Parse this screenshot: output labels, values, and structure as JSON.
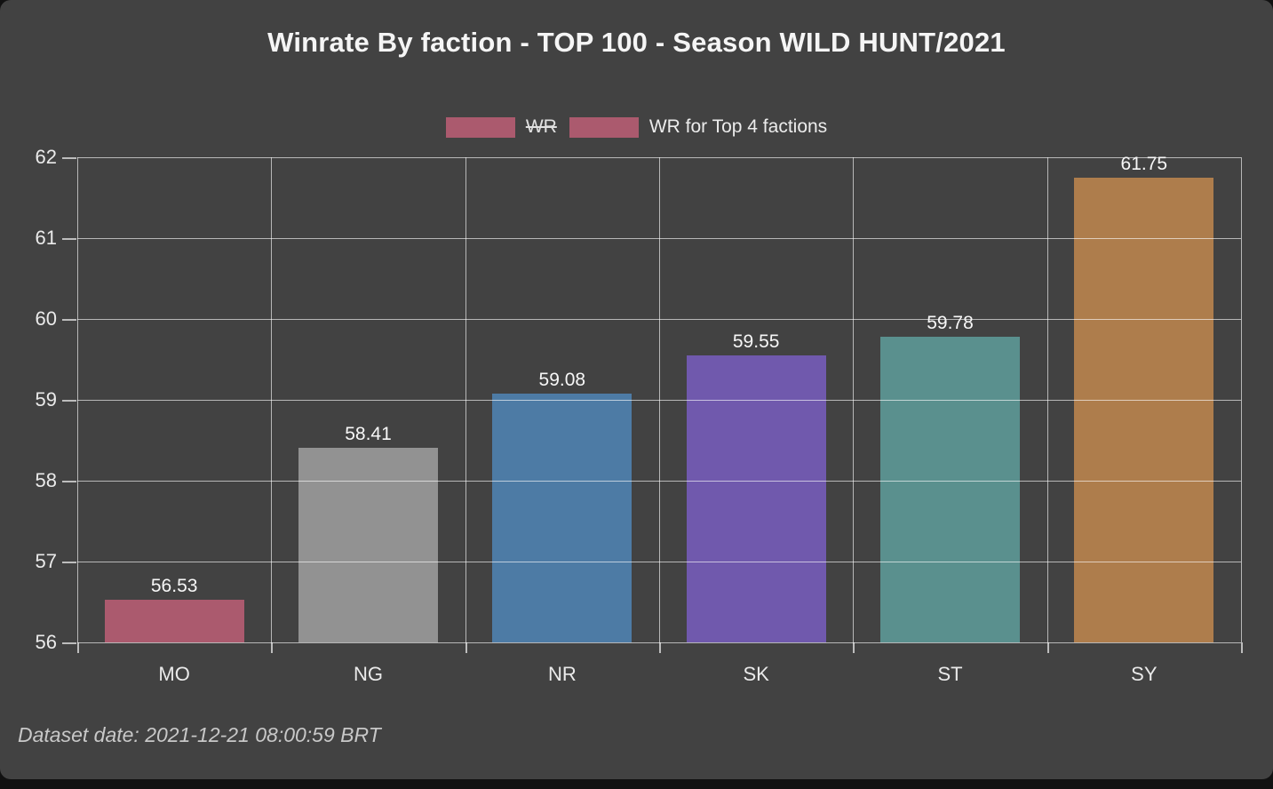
{
  "window": {
    "page_background": "#111111",
    "card_background": "#424242"
  },
  "chart_data": {
    "type": "bar",
    "title": "Winrate By faction - TOP 100 - Season WILD HUNT/2021",
    "categories": [
      "MO",
      "NG",
      "NR",
      "SK",
      "ST",
      "SY"
    ],
    "values": [
      56.53,
      58.41,
      59.08,
      59.55,
      59.78,
      61.75
    ],
    "value_labels": [
      "56.53",
      "58.41",
      "59.08",
      "59.55",
      "59.78",
      "61.75"
    ],
    "bar_colors": [
      "#ab5a6e",
      "#929292",
      "#4d7ba5",
      "#7059ad",
      "#5a908e",
      "#ae7d4c"
    ],
    "xlabel": "",
    "ylabel": "",
    "ylim": [
      56,
      62
    ],
    "y_ticks": [
      "62",
      "61",
      "60",
      "59",
      "58",
      "57",
      "56"
    ],
    "grid": true,
    "gridline_color": "rgba(255,255,255,0.62)",
    "legend_position": "top-center",
    "legend": [
      {
        "label": "WR",
        "swatch_color": "#ab5a6e",
        "struck_through": true,
        "hidden_series": true
      },
      {
        "label": "WR for Top 4 factions",
        "swatch_color": "#ab5a6e",
        "struck_through": false,
        "hidden_series": false
      }
    ],
    "text_color": "#eaeaea"
  },
  "footer": {
    "dataset_date_label": "Dataset date: 2021-12-21 08:00:59 BRT"
  }
}
